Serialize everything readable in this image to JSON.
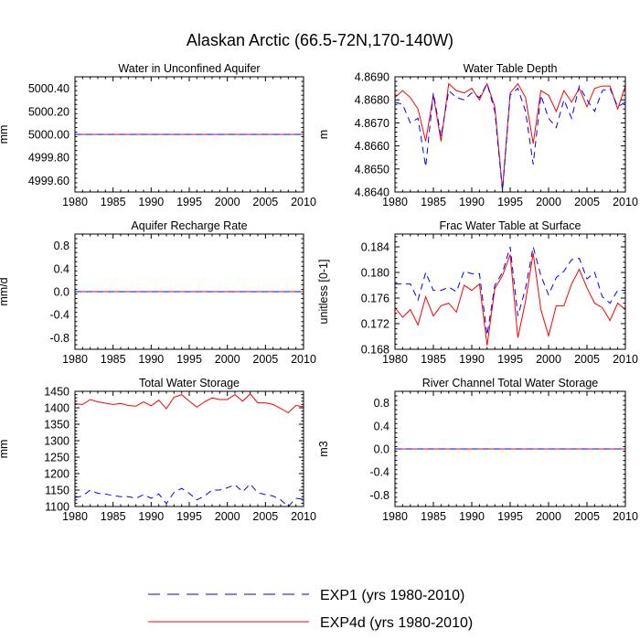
{
  "figure_title": "Alaskan Arctic (66.5-72N,170-140W)",
  "legend": [
    {
      "label": "EXP1 (yrs 1980-2010)",
      "color": "#0000ff",
      "dash": true
    },
    {
      "label": "EXP4d (yrs 1980-2010)",
      "color": "#ff0000",
      "dash": false
    }
  ],
  "chart_data": [
    {
      "type": "line",
      "title": "Water in Unconfined Aquifer",
      "ylabel": "mm",
      "xlim": [
        1980,
        2010
      ],
      "ylim": [
        4999.5,
        5000.5
      ],
      "xticks": [
        1980,
        1985,
        1990,
        1995,
        2000,
        2005,
        2010
      ],
      "xtick_labels": [
        "1980",
        "1985",
        "1990",
        "1995",
        "2000",
        "2005",
        "2010"
      ],
      "yticks": [
        4999.6,
        4999.8,
        5000.0,
        5000.2,
        5000.4
      ],
      "ytick_labels": [
        "4999.60",
        "4999.80",
        "5000.00",
        "5000.20",
        "5000.40"
      ],
      "x": [
        1980,
        2010
      ],
      "series": [
        {
          "name": "EXP1",
          "values": [
            5000.0,
            5000.0
          ]
        },
        {
          "name": "EXP4d",
          "values": [
            5000.0,
            5000.0
          ]
        }
      ]
    },
    {
      "type": "line",
      "title": "Water Table Depth",
      "ylabel": "m",
      "xlim": [
        1980,
        2010
      ],
      "ylim": [
        4.864,
        4.869
      ],
      "xticks": [
        1980,
        1985,
        1990,
        1995,
        2000,
        2005,
        2010
      ],
      "xtick_labels": [
        "1980",
        "1985",
        "1990",
        "1995",
        "2000",
        "2005",
        "2010"
      ],
      "yticks": [
        4.864,
        4.865,
        4.866,
        4.867,
        4.868,
        4.869
      ],
      "ytick_labels": [
        "4.8640",
        "4.8650",
        "4.8660",
        "4.8670",
        "4.8680",
        "4.8690"
      ],
      "x": [
        1980,
        1981,
        1982,
        1983,
        1984,
        1985,
        1986,
        1987,
        1988,
        1989,
        1990,
        1991,
        1992,
        1993,
        1994,
        1995,
        1996,
        1997,
        1998,
        1999,
        2000,
        2001,
        2002,
        2003,
        2004,
        2005,
        2006,
        2007,
        2008,
        2009,
        2010
      ],
      "series": [
        {
          "name": "EXP1",
          "values": [
            4.8679,
            4.8678,
            4.867,
            4.8672,
            4.8651,
            4.8683,
            4.8664,
            4.8684,
            4.8681,
            4.868,
            4.8683,
            4.8681,
            4.8687,
            4.8675,
            4.86405,
            4.8682,
            4.8685,
            4.8675,
            4.8652,
            4.8682,
            4.8672,
            4.8668,
            4.868,
            4.8672,
            4.8686,
            4.868,
            4.8675,
            4.8684,
            4.8685,
            4.8677,
            4.8679
          ]
        },
        {
          "name": "EXP4d",
          "values": [
            4.8681,
            4.8684,
            4.8681,
            4.8676,
            4.8662,
            4.8682,
            4.8662,
            4.8687,
            4.8684,
            4.8683,
            4.8685,
            4.868,
            4.8687,
            4.8677,
            4.8641,
            4.8683,
            4.8687,
            4.8681,
            4.8661,
            4.8684,
            4.8682,
            4.8675,
            4.8684,
            4.8679,
            4.8685,
            4.8677,
            4.8685,
            4.8686,
            4.8686,
            4.8676,
            4.8686
          ]
        }
      ]
    },
    {
      "type": "line",
      "title": "Aquifer Recharge Rate",
      "ylabel": "mm/d",
      "xlim": [
        1980,
        2010
      ],
      "ylim": [
        -1,
        1
      ],
      "xticks": [
        1980,
        1985,
        1990,
        1995,
        2000,
        2005,
        2010
      ],
      "xtick_labels": [
        "1980",
        "1985",
        "1990",
        "1995",
        "2000",
        "2005",
        "2010"
      ],
      "yticks": [
        -0.8,
        -0.4,
        0.0,
        0.4,
        0.8
      ],
      "ytick_labels": [
        "-0.8",
        "-0.4",
        "0.0",
        "0.4",
        "0.8"
      ],
      "x": [
        1980,
        2010
      ],
      "series": [
        {
          "name": "EXP1",
          "values": [
            0.0,
            0.0
          ]
        },
        {
          "name": "EXP4d",
          "values": [
            0.0,
            0.0
          ]
        }
      ]
    },
    {
      "type": "line",
      "title": "Frac Water Table at Surface",
      "ylabel": "unitless [0-1]",
      "xlim": [
        1980,
        2010
      ],
      "ylim": [
        0.168,
        0.186
      ],
      "xticks": [
        1980,
        1985,
        1990,
        1995,
        2000,
        2005,
        2010
      ],
      "xtick_labels": [
        "1980",
        "1985",
        "1990",
        "1995",
        "2000",
        "2005",
        "2010"
      ],
      "yticks": [
        0.168,
        0.172,
        0.176,
        0.18,
        0.184
      ],
      "ytick_labels": [
        "0.168",
        "0.172",
        "0.176",
        "0.180",
        "0.184"
      ],
      "x": [
        1980,
        1981,
        1982,
        1983,
        1984,
        1985,
        1986,
        1987,
        1988,
        1989,
        1990,
        1991,
        1992,
        1993,
        1994,
        1995,
        1996,
        1997,
        1998,
        1999,
        2000,
        2001,
        2002,
        2003,
        2004,
        2005,
        2006,
        2007,
        2008,
        2009,
        2010
      ],
      "series": [
        {
          "name": "EXP1",
          "values": [
            0.1782,
            0.1782,
            0.1782,
            0.1757,
            0.18,
            0.1772,
            0.1772,
            0.1777,
            0.177,
            0.1802,
            0.1798,
            0.1798,
            0.1702,
            0.178,
            0.18,
            0.184,
            0.1732,
            0.1775,
            0.184,
            0.1795,
            0.1765,
            0.1792,
            0.1802,
            0.182,
            0.1822,
            0.179,
            0.18,
            0.1762,
            0.1752,
            0.1772,
            0.1772
          ]
        },
        {
          "name": "EXP4d",
          "values": [
            0.1745,
            0.173,
            0.1742,
            0.1718,
            0.1762,
            0.1732,
            0.1748,
            0.1752,
            0.1738,
            0.178,
            0.1772,
            0.1782,
            0.1686,
            0.1775,
            0.1795,
            0.1828,
            0.1698,
            0.1755,
            0.183,
            0.1742,
            0.1701,
            0.1748,
            0.1748,
            0.1782,
            0.1805,
            0.1776,
            0.1752,
            0.1745,
            0.1725,
            0.1752,
            0.1742
          ]
        }
      ]
    },
    {
      "type": "line",
      "title": "Total Water Storage",
      "ylabel": "mm",
      "xlim": [
        1980,
        2010
      ],
      "ylim": [
        1100,
        1450
      ],
      "xticks": [
        1980,
        1985,
        1990,
        1995,
        2000,
        2005,
        2010
      ],
      "xtick_labels": [
        "1980",
        "1985",
        "1990",
        "1995",
        "2000",
        "2005",
        "2010"
      ],
      "yticks": [
        1100,
        1150,
        1200,
        1250,
        1300,
        1350,
        1400,
        1450
      ],
      "ytick_labels": [
        "1100",
        "1150",
        "1200",
        "1250",
        "1300",
        "1350",
        "1400",
        "1450"
      ],
      "x": [
        1980,
        1981,
        1982,
        1983,
        1984,
        1985,
        1986,
        1987,
        1988,
        1989,
        1990,
        1991,
        1992,
        1993,
        1994,
        1995,
        1996,
        1997,
        1998,
        1999,
        2000,
        2001,
        2002,
        2003,
        2004,
        2005,
        2006,
        2007,
        2008,
        2009,
        2010
      ],
      "series": [
        {
          "name": "EXP1",
          "values": [
            1127,
            1132,
            1150,
            1140,
            1138,
            1133,
            1130,
            1130,
            1125,
            1136,
            1125,
            1138,
            1109,
            1143,
            1155,
            1140,
            1120,
            1132,
            1150,
            1150,
            1157,
            1166,
            1145,
            1168,
            1142,
            1136,
            1132,
            1120,
            1100,
            1125,
            1122
          ]
        },
        {
          "name": "EXP4d",
          "values": [
            1412,
            1410,
            1425,
            1418,
            1414,
            1410,
            1413,
            1407,
            1405,
            1418,
            1406,
            1423,
            1397,
            1432,
            1440,
            1420,
            1402,
            1418,
            1430,
            1425,
            1425,
            1440,
            1420,
            1442,
            1415,
            1415,
            1410,
            1398,
            1385,
            1407,
            1403
          ]
        }
      ]
    },
    {
      "type": "line",
      "title": "River Channel Total Water Storage",
      "ylabel": "m3",
      "xlim": [
        1980,
        2010
      ],
      "ylim": [
        -1,
        1
      ],
      "xticks": [
        1980,
        1985,
        1990,
        1995,
        2000,
        2005,
        2010
      ],
      "xtick_labels": [
        "1980",
        "1985",
        "1990",
        "1995",
        "2000",
        "2005",
        "2010"
      ],
      "yticks": [
        -0.8,
        -0.4,
        0.0,
        0.4,
        0.8
      ],
      "ytick_labels": [
        "-0.8",
        "-0.4",
        "0.0",
        "0.4",
        "0.8"
      ],
      "x": [
        1980,
        2010
      ],
      "series": [
        {
          "name": "EXP1",
          "values": [
            0.0,
            0.0
          ]
        },
        {
          "name": "EXP4d",
          "values": [
            0.0,
            0.0
          ]
        }
      ]
    }
  ]
}
